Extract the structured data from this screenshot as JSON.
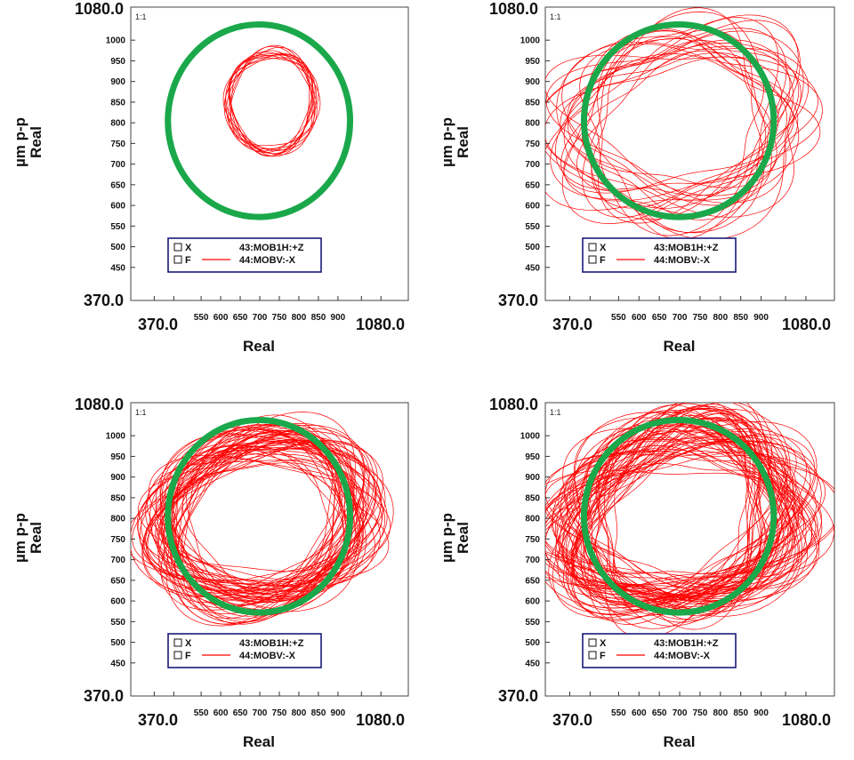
{
  "colors": {
    "orbit": "#ff0000",
    "circle": "#1aa84a",
    "legend_border": "#1a1a7a",
    "frame": "#444444"
  },
  "chart_data": [
    {
      "type": "scatter",
      "panel": "top-left",
      "ratio_label": "1:1",
      "xlabel": "Real",
      "ylabel_lines": [
        "µm p-p",
        "Real"
      ],
      "xlim": [
        370.0,
        1080.0
      ],
      "ylim": [
        370.0,
        1080.0
      ],
      "x_range_labels": [
        "370.0",
        "1080.0"
      ],
      "y_range_labels": [
        "370.0",
        "1080.0"
      ],
      "x_tick_labels": [
        "550",
        "600",
        "650",
        "700",
        "750",
        "800",
        "850",
        "900"
      ],
      "y_tick_labels": [
        "1000",
        "950",
        "900",
        "850",
        "800",
        "750",
        "700",
        "650",
        "600",
        "550",
        "500",
        "450"
      ],
      "legend": [
        {
          "box": "X",
          "name": "43:MOB1H:+Z",
          "line": false
        },
        {
          "box": "F",
          "name": "44:MOBV:-X",
          "line": true
        }
      ],
      "reference_circle": {
        "center": [
          698,
          805
        ],
        "radius": 233
      },
      "orbit": {
        "center": [
          730,
          850
        ],
        "rx": 108,
        "ry": 120,
        "loops": 12,
        "spread": 0.06,
        "skew": 0.05,
        "lobe": 0.08,
        "seed": 1
      }
    },
    {
      "type": "scatter",
      "panel": "top-right",
      "ratio_label": "1:1",
      "xlabel": "Real",
      "ylabel_lines": [
        "µm p-p",
        "Real"
      ],
      "xlim": [
        370.0,
        1080.0
      ],
      "ylim": [
        370.0,
        1080.0
      ],
      "x_range_labels": [
        "370.0",
        "1080.0"
      ],
      "y_range_labels": [
        "370.0",
        "1080.0"
      ],
      "x_tick_labels": [
        "550",
        "600",
        "650",
        "700",
        "750",
        "800",
        "850",
        "900"
      ],
      "y_tick_labels": [
        "1000",
        "950",
        "900",
        "850",
        "800",
        "750",
        "700",
        "650",
        "600",
        "550",
        "500",
        "450"
      ],
      "legend": [
        {
          "box": "X",
          "name": "43:MOB1H:+Z",
          "line": false
        },
        {
          "box": "F",
          "name": "44:MOBV:-X",
          "line": true
        }
      ],
      "reference_circle": {
        "center": [
          698,
          805
        ],
        "radius": 233
      },
      "orbit": {
        "center": [
          700,
          800
        ],
        "rx": 270,
        "ry": 200,
        "loops": 24,
        "spread": 0.22,
        "skew": 0.35,
        "lobe": 0.18,
        "seed": 2
      }
    },
    {
      "type": "scatter",
      "panel": "bottom-left",
      "ratio_label": "1:1",
      "xlabel": "Real",
      "ylabel_lines": [
        "µm p-p",
        "Real"
      ],
      "xlim": [
        370.0,
        1080.0
      ],
      "ylim": [
        370.0,
        1080.0
      ],
      "x_range_labels": [
        "370.0",
        "1080.0"
      ],
      "y_range_labels": [
        "370.0",
        "1080.0"
      ],
      "x_tick_labels": [
        "550",
        "600",
        "650",
        "700",
        "750",
        "800",
        "850",
        "900"
      ],
      "y_tick_labels": [
        "1000",
        "950",
        "900",
        "850",
        "800",
        "750",
        "700",
        "650",
        "600",
        "550",
        "500",
        "450"
      ],
      "legend": [
        {
          "box": "X",
          "name": "43:MOB1H:+Z",
          "line": false
        },
        {
          "box": "F",
          "name": "44:MOBV:-X",
          "line": true
        }
      ],
      "reference_circle": {
        "center": [
          698,
          805
        ],
        "radius": 233
      },
      "orbit": {
        "center": [
          705,
          800
        ],
        "rx": 250,
        "ry": 190,
        "loops": 60,
        "spread": 0.2,
        "skew": 0.28,
        "lobe": 0.12,
        "seed": 3
      }
    },
    {
      "type": "scatter",
      "panel": "bottom-right",
      "ratio_label": "1:1",
      "xlabel": "Real",
      "ylabel_lines": [
        "µm p-p",
        "Real"
      ],
      "xlim": [
        370.0,
        1080.0
      ],
      "ylim": [
        370.0,
        1080.0
      ],
      "x_range_labels": [
        "370.0",
        "1080.0"
      ],
      "y_range_labels": [
        "370.0",
        "1080.0"
      ],
      "x_tick_labels": [
        "550",
        "600",
        "650",
        "700",
        "750",
        "800",
        "850",
        "900"
      ],
      "y_tick_labels": [
        "1000",
        "950",
        "900",
        "850",
        "800",
        "750",
        "700",
        "650",
        "600",
        "550",
        "500",
        "450"
      ],
      "legend": [
        {
          "box": "X",
          "name": "43:MOB1H:+Z",
          "line": false
        },
        {
          "box": "F",
          "name": "44:MOBV:-X",
          "line": true
        }
      ],
      "reference_circle": {
        "center": [
          698,
          805
        ],
        "radius": 233
      },
      "orbit": {
        "center": [
          700,
          800
        ],
        "rx": 265,
        "ry": 200,
        "loops": 70,
        "spread": 0.24,
        "skew": 0.33,
        "lobe": 0.17,
        "seed": 4
      }
    }
  ]
}
